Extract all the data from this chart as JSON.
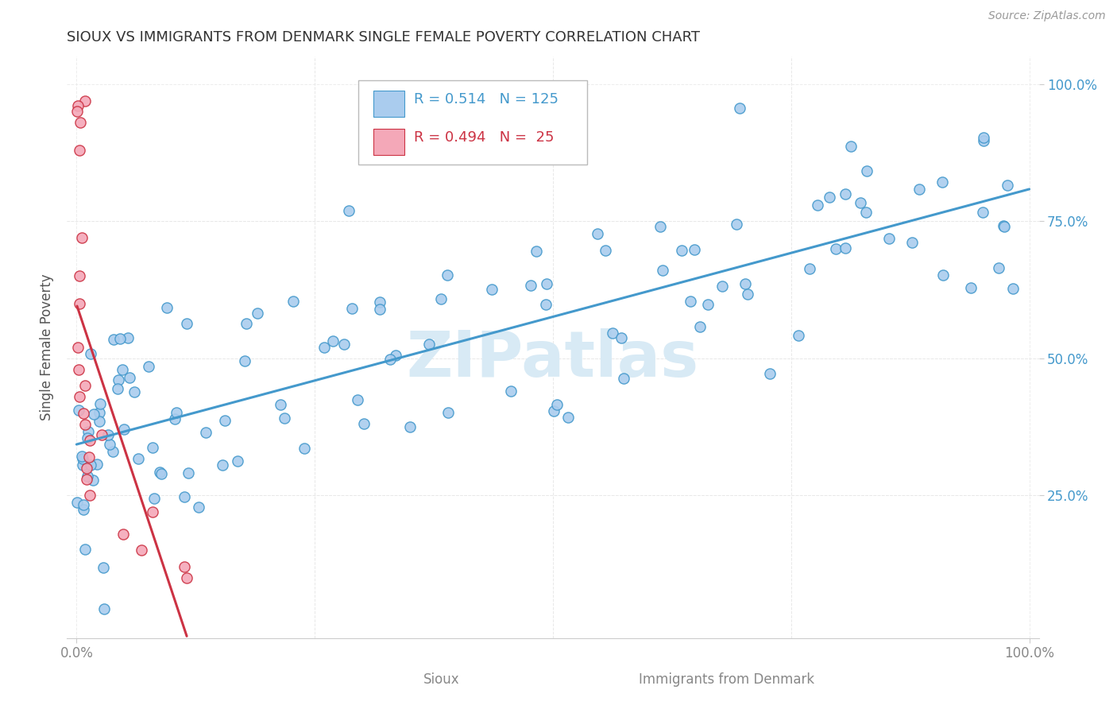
{
  "title": "SIOUX VS IMMIGRANTS FROM DENMARK SINGLE FEMALE POVERTY CORRELATION CHART",
  "source_text": "Source: ZipAtlas.com",
  "ylabel": "Single Female Poverty",
  "legend_label1": "Sioux",
  "legend_label2": "Immigrants from Denmark",
  "r1": 0.514,
  "n1": 125,
  "r2": 0.494,
  "n2": 25,
  "color1": "#aaccee",
  "color2": "#f4a8b8",
  "trendline1_color": "#4499cc",
  "trendline2_color": "#cc3344",
  "watermark": "ZIPatlas",
  "watermark_color": "#d8eaf5",
  "xlim": [
    -0.01,
    1.01
  ],
  "ylim": [
    -0.01,
    1.05
  ],
  "xtick_positions": [
    0.0,
    1.0
  ],
  "xticklabels": [
    "0.0%",
    "100.0%"
  ],
  "ytick_positions": [
    0.25,
    0.5,
    0.75,
    1.0
  ],
  "yticklabels_right": [
    "25.0%",
    "50.0%",
    "75.0%",
    "100.0%"
  ],
  "background_color": "#ffffff",
  "grid_color": "#e8e8e8",
  "title_color": "#333333",
  "axis_label_color": "#555555",
  "tick_color": "#888888",
  "source_color": "#999999"
}
